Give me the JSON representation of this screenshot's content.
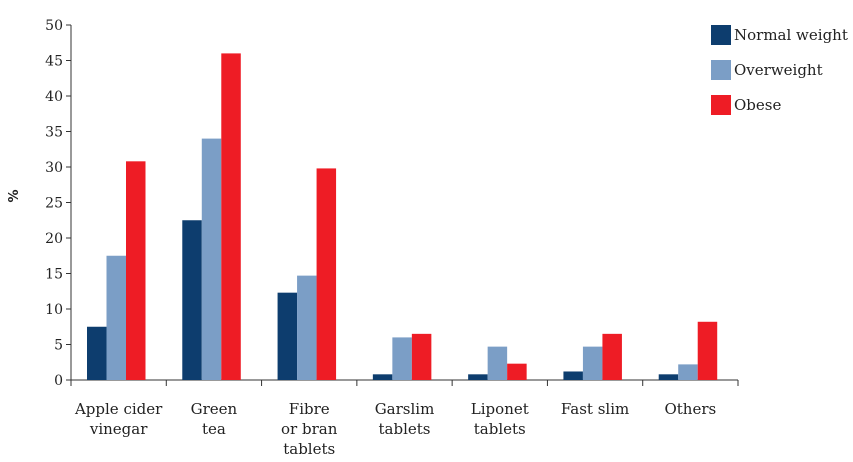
{
  "chart_data": {
    "type": "bar",
    "title": "",
    "ylabel": "%",
    "xlabel": "",
    "ylim": [
      0,
      50
    ],
    "yticks": [
      0,
      5,
      10,
      15,
      20,
      25,
      30,
      35,
      40,
      45,
      50
    ],
    "grid": false,
    "legend_position": "top-right",
    "categories": [
      [
        "Apple cider",
        "vinegar"
      ],
      [
        "Green",
        "tea"
      ],
      [
        "Fibre",
        "or bran",
        "tablets"
      ],
      [
        "Garslim",
        "tablets"
      ],
      [
        "Liponet",
        "tablets"
      ],
      [
        "Fast slim"
      ],
      [
        "Others"
      ]
    ],
    "series": [
      {
        "name": "Normal weight",
        "color": "#0d3d6e",
        "values": [
          7.5,
          22.5,
          12.3,
          0.8,
          0.8,
          1.2,
          0.8
        ]
      },
      {
        "name": "Overweight",
        "color": "#7b9ec6",
        "values": [
          17.5,
          34.0,
          14.7,
          6.0,
          4.7,
          4.7,
          2.2
        ]
      },
      {
        "name": "Obese",
        "color": "#ee1c25",
        "values": [
          30.8,
          46.0,
          29.8,
          6.5,
          2.3,
          6.5,
          8.2
        ]
      }
    ]
  }
}
